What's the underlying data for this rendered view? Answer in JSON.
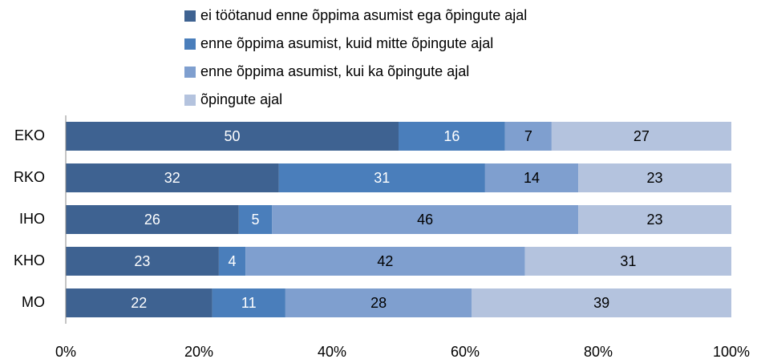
{
  "chart_data": {
    "type": "stacked_bar_horizontal",
    "categories": [
      "EKO",
      "RKO",
      "IHO",
      "KHO",
      "MO"
    ],
    "series": [
      {
        "name": "ei töötanud enne õppima asumist ega õpingute ajal",
        "color": "#3e6291",
        "values": [
          50,
          32,
          26,
          23,
          22
        ]
      },
      {
        "name": "enne õppima asumist, kuid mitte õpingute ajal",
        "color": "#4a7ebb",
        "values": [
          16,
          31,
          5,
          4,
          11
        ]
      },
      {
        "name": "enne õppima asumist, kui ka õpingute ajal",
        "color": "#7f9fcf",
        "values": [
          7,
          14,
          46,
          42,
          28
        ]
      },
      {
        "name": "õpingute ajal",
        "color": "#b4c3de",
        "values": [
          27,
          23,
          23,
          31,
          39
        ]
      }
    ],
    "xlim": [
      0,
      100
    ],
    "xticks": [
      {
        "value": 0,
        "label": "0%"
      },
      {
        "value": 20,
        "label": "20%"
      },
      {
        "value": 40,
        "label": "40%"
      },
      {
        "value": 60,
        "label": "60%"
      },
      {
        "value": 80,
        "label": "80%"
      },
      {
        "value": 100,
        "label": "100%"
      }
    ],
    "legend": "top"
  }
}
